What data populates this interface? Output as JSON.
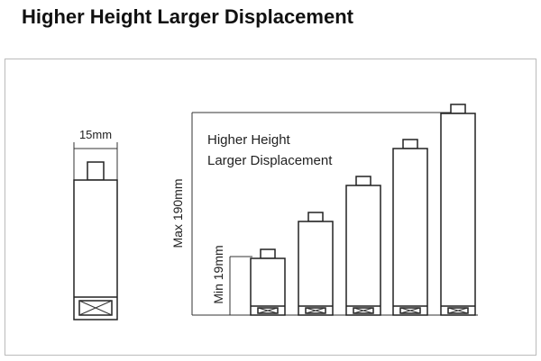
{
  "header": {
    "title": "Higher Height Larger Displacement"
  },
  "diagram": {
    "width_label": "15mm",
    "caption_lines": [
      "Higher Height",
      "Larger Displacement"
    ],
    "max_label": "Max 190mm",
    "min_label": "Min 19mm"
  }
}
